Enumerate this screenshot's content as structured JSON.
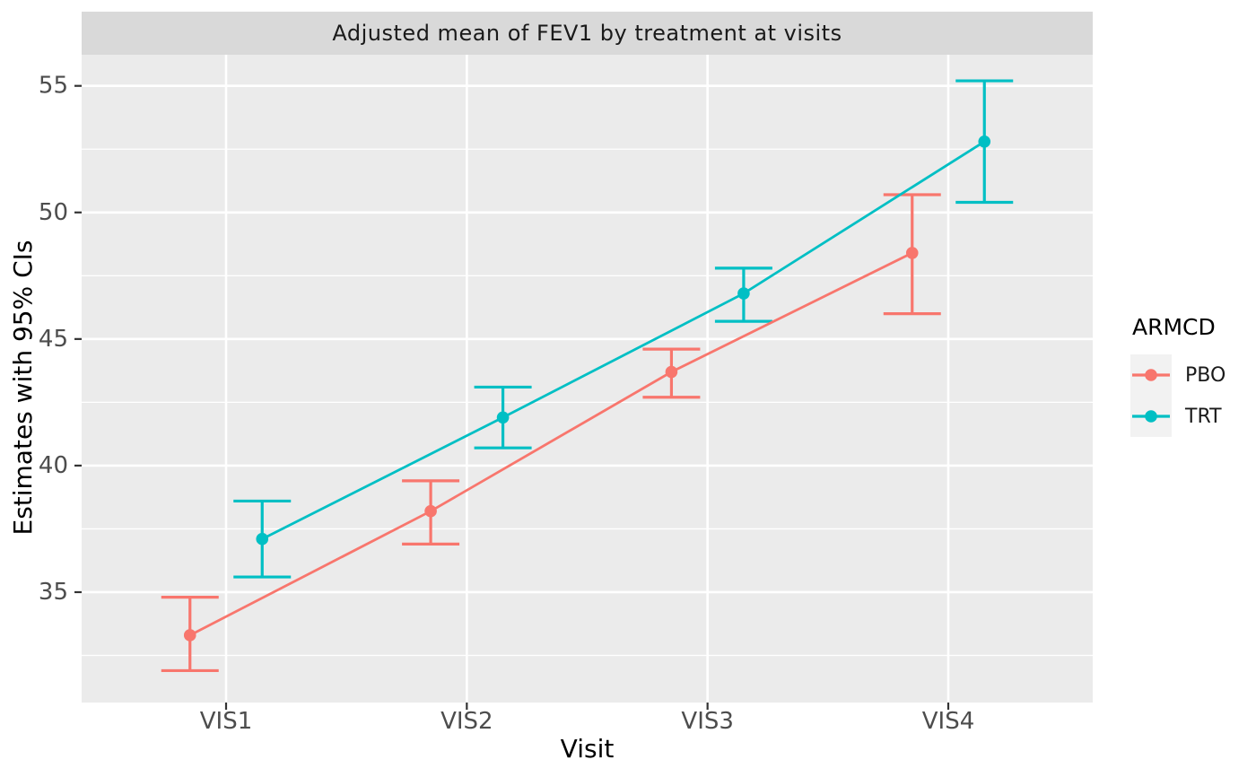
{
  "title": "Adjusted mean of FEV1 by treatment at visits",
  "axes": {
    "x_title": "Visit",
    "y_title": "Estimates with 95% CIs",
    "x_tick_labels": [
      "VIS1",
      "VIS2",
      "VIS3",
      "VIS4"
    ],
    "y_tick_labels": [
      "35",
      "40",
      "45",
      "50",
      "55"
    ]
  },
  "legend": {
    "title": "ARMCD",
    "items": [
      {
        "label": "PBO",
        "color": "#F8766D"
      },
      {
        "label": "TRT",
        "color": "#00BFC4"
      }
    ]
  },
  "colors": {
    "panel_background": "#EBEBEB",
    "strip_background": "#D9D9D9",
    "gridline": "#FFFFFF",
    "tick_mark": "#333333",
    "tick_label": "#4D4D4D",
    "legend_key_background": "#F2F2F2",
    "pbo": "#F8766D",
    "trt": "#00BFC4"
  },
  "chart_data": {
    "type": "line",
    "title": "Adjusted mean of FEV1 by treatment at visits",
    "xlabel": "Visit",
    "ylabel": "Estimates with 95% CIs",
    "categories": [
      "VIS1",
      "VIS2",
      "VIS3",
      "VIS4"
    ],
    "series": [
      {
        "name": "PBO",
        "color": "#F8766D",
        "values": [
          33.3,
          38.2,
          43.7,
          48.4
        ],
        "ci_low": [
          31.9,
          36.9,
          42.7,
          46.0
        ],
        "ci_high": [
          34.8,
          39.4,
          44.6,
          50.7
        ]
      },
      {
        "name": "TRT",
        "color": "#00BFC4",
        "values": [
          37.1,
          41.9,
          46.8,
          52.8
        ],
        "ci_low": [
          35.6,
          40.7,
          45.7,
          50.4
        ],
        "ci_high": [
          38.6,
          43.1,
          47.8,
          55.2
        ]
      }
    ],
    "y_major_ticks": [
      35,
      40,
      45,
      50,
      55
    ],
    "y_minor_ticks": [
      32.5,
      37.5,
      42.5,
      47.5,
      52.5
    ],
    "ylim": [
      30.64,
      56.23
    ],
    "dodge": 0.3,
    "error_bars": "95% CI",
    "grid": true,
    "legend_position": "right",
    "legend_title": "ARMCD"
  }
}
